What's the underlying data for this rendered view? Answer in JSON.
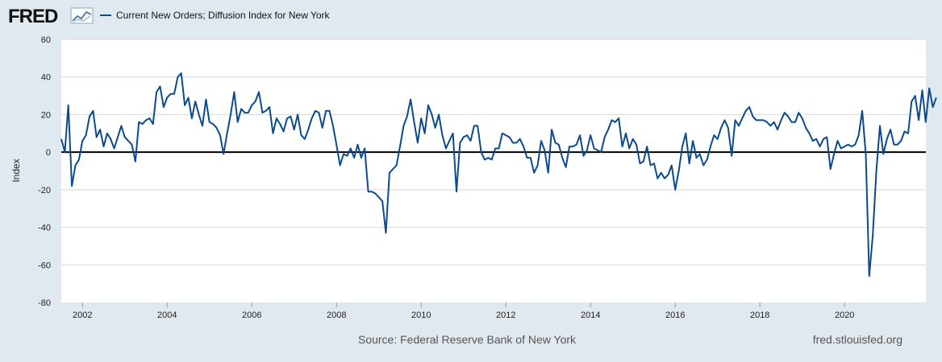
{
  "header": {
    "logo_text": "FRED",
    "legend_label": "Current New Orders; Diffusion Index for New York"
  },
  "footer": {
    "source": "Source: Federal Reserve Bank of New York",
    "url": "fred.stlouisfed.org"
  },
  "colors": {
    "series": "#0b4a8c",
    "background": "#e1e9f0",
    "plot": "#ffffff",
    "grid": "#d8d8d8",
    "zero_line": "#000000"
  },
  "icons": {
    "logo_chart": "fred-chart-icon"
  },
  "chart_data": {
    "type": "line",
    "title": "Current New Orders; Diffusion Index for New York",
    "xlabel": "",
    "ylabel": "Index",
    "ylim": [
      -80,
      60
    ],
    "yticks": [
      60,
      40,
      20,
      0,
      -20,
      -40,
      -60,
      -80
    ],
    "xlim": [
      2001.5,
      2021.92
    ],
    "xticks": [
      2002,
      2004,
      2006,
      2008,
      2010,
      2012,
      2014,
      2016,
      2018,
      2020
    ],
    "xtick_labels": [
      "2002",
      "2004",
      "2006",
      "2008",
      "2010",
      "2012",
      "2014",
      "2016",
      "2018",
      "2020"
    ],
    "grid": true,
    "zero_line": true,
    "series": [
      {
        "name": "Current New Orders; Diffusion Index for New York",
        "start": [
          2001,
          7
        ],
        "frequency": "monthly",
        "values": [
          7,
          0,
          25,
          -18,
          -7,
          -4,
          6,
          9,
          19,
          22,
          8,
          12,
          3,
          10,
          7,
          2,
          8,
          14,
          8,
          6,
          4,
          -5,
          16,
          15,
          17,
          18,
          15,
          32,
          35,
          24,
          29,
          31,
          31,
          40,
          42,
          25,
          29,
          18,
          27,
          20,
          14,
          28,
          16,
          15,
          13,
          9,
          -1,
          10,
          20,
          32,
          16,
          23,
          21,
          21,
          25,
          27,
          32,
          21,
          22,
          24,
          10,
          18,
          15,
          11,
          18,
          19,
          12,
          20,
          9,
          7,
          12,
          18,
          22,
          21,
          13,
          22,
          22,
          14,
          4,
          -7,
          -1,
          -2,
          2,
          -3,
          4,
          -3,
          2,
          -21,
          -21,
          -22,
          -24,
          -26,
          -43,
          -11,
          -9,
          -7,
          3,
          14,
          19,
          28,
          16,
          5,
          18,
          10,
          25,
          20,
          13,
          20,
          9,
          2,
          6,
          10,
          -21,
          5,
          8,
          9,
          6,
          14,
          14,
          0,
          -4,
          -3,
          -4,
          2,
          2,
          10,
          9,
          8,
          5,
          5,
          7,
          3,
          -3,
          -3,
          -11,
          -7,
          6,
          1,
          -11,
          12,
          5,
          4,
          -3,
          -8,
          3,
          3,
          4,
          9,
          -2,
          1,
          9,
          2,
          1,
          0,
          8,
          12,
          17,
          16,
          18,
          3,
          10,
          2,
          7,
          4,
          -6,
          -5,
          3,
          -7,
          -6,
          -14,
          -11,
          -14,
          -12,
          -7,
          -20,
          -10,
          3,
          10,
          -6,
          6,
          -3,
          -1,
          -7,
          -4,
          3,
          9,
          7,
          13,
          17,
          13,
          -2,
          17,
          14,
          18,
          22,
          24,
          19,
          17,
          17,
          17,
          16,
          14,
          16,
          12,
          17,
          21,
          19,
          16,
          16,
          21,
          18,
          13,
          10,
          6,
          7,
          3,
          7,
          8,
          -9,
          -1,
          6,
          2,
          3,
          4,
          3,
          4,
          9,
          22,
          -1,
          -66,
          -44,
          -10,
          14,
          -1,
          7,
          12,
          4,
          4,
          6,
          11,
          10,
          27,
          30,
          17,
          33,
          16,
          34,
          24,
          29
        ]
      }
    ]
  }
}
